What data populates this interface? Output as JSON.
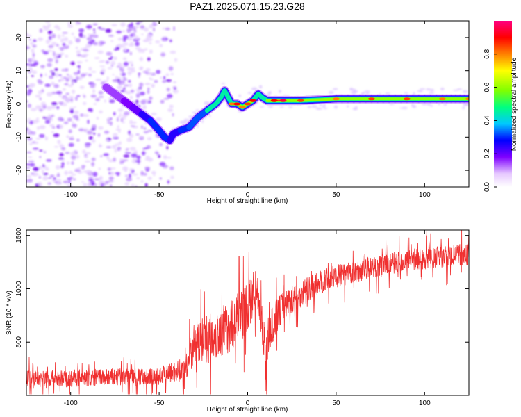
{
  "title": "PAZ1.2025.071.15.23.G28",
  "chart_data": [
    {
      "type": "heatmap",
      "xlabel": "Height of straight line (km)",
      "ylabel": "Frequency (Hz)",
      "xlim": [
        -125,
        125
      ],
      "ylim": [
        -25,
        25
      ],
      "xticks": [
        -100,
        -50,
        0,
        50,
        100
      ],
      "yticks": [
        -20,
        -10,
        0,
        10,
        20
      ],
      "colorbar": {
        "label": "Normalized spectral amplitude",
        "range": [
          0,
          1
        ],
        "ticks": [
          "0.0",
          "0.2",
          "0.4",
          "0.6",
          "0.8"
        ],
        "colors": [
          "#ffffff",
          "#e6c8ff",
          "#7f00ff",
          "#0000ff",
          "#00c8ff",
          "#00ff80",
          "#80ff00",
          "#ffff00",
          "#ff8000",
          "#ff0000",
          "#ff0080"
        ]
      },
      "ridge": {
        "x": [
          -80,
          -75,
          -70,
          -65,
          -60,
          -55,
          -50,
          -47,
          -44,
          -42,
          -38,
          -33,
          -28,
          -23,
          -18,
          -15,
          -13,
          -11,
          -9,
          -6,
          -3,
          0,
          3,
          6,
          8,
          11,
          15,
          20,
          30,
          50,
          70,
          90,
          110,
          125
        ],
        "y": [
          5,
          3,
          1,
          -1,
          -3,
          -5,
          -8,
          -10,
          -11,
          -9,
          -8,
          -7,
          -4,
          -2,
          0,
          2,
          4,
          2,
          0,
          0,
          -1,
          0,
          1,
          3,
          2,
          1,
          1,
          1,
          1,
          1.5,
          1.5,
          1.5,
          1.5,
          1.5
        ],
        "amplitude": [
          0.15,
          0.15,
          0.18,
          0.2,
          0.25,
          0.3,
          0.3,
          0.3,
          0.3,
          0.25,
          0.3,
          0.35,
          0.4,
          0.45,
          0.45,
          0.5,
          0.5,
          0.55,
          0.75,
          0.85,
          0.75,
          0.8,
          0.85,
          0.5,
          0.5,
          0.6,
          0.85,
          0.9,
          0.8,
          0.75,
          0.8,
          0.8,
          0.75,
          0.75
        ]
      },
      "noise_region_x": [
        -125,
        -40
      ],
      "line_band_x": [
        -45,
        125
      ]
    },
    {
      "type": "line",
      "xlabel": "Height of straight line (km)",
      "ylabel": "SNR (10 * v/v)",
      "xlim": [
        -125,
        125
      ],
      "ylim": [
        0,
        1550
      ],
      "xticks": [
        -100,
        -50,
        0,
        50,
        100
      ],
      "yticks": [
        500,
        1000,
        1500
      ],
      "color": "#f03030",
      "series": [
        {
          "x": [
            -125,
            -100,
            -75,
            -50,
            -35,
            -30,
            -20,
            -10,
            -5,
            0,
            5,
            10,
            15,
            20,
            30,
            40,
            50,
            60,
            70,
            80,
            90,
            100,
            110,
            125
          ],
          "y": [
            150,
            160,
            170,
            180,
            250,
            500,
            550,
            650,
            750,
            800,
            1050,
            450,
            700,
            850,
            950,
            1050,
            1120,
            1150,
            1200,
            1230,
            1270,
            1280,
            1300,
            1320
          ],
          "spread": [
            120,
            120,
            120,
            120,
            160,
            300,
            350,
            350,
            350,
            350,
            250,
            300,
            250,
            200,
            180,
            160,
            150,
            150,
            150,
            150,
            150,
            150,
            150,
            150
          ]
        }
      ]
    }
  ]
}
